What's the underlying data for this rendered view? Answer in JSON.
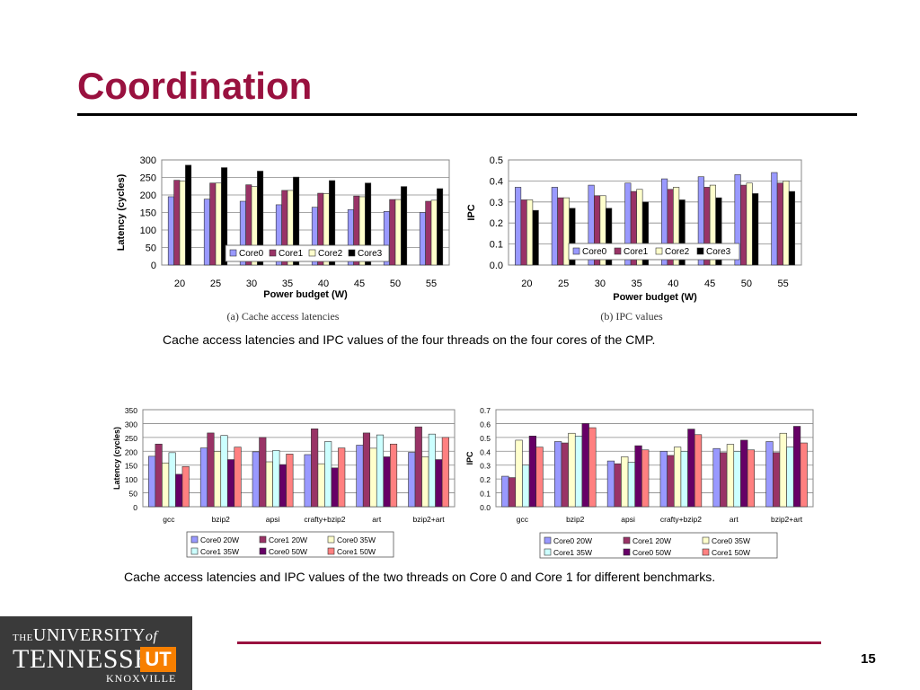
{
  "slide": {
    "title": "Coordination",
    "caption1": "Cache access latencies and IPC values of the four threads on the four cores of the CMP.",
    "caption2": "Cache access latencies and IPC values of the two threads on Core 0 and Core 1 for different benchmarks.",
    "page_number": "15"
  },
  "logo": {
    "line1_the": "THE",
    "line1_univ": "UNIVERSITY",
    "line1_of": "of",
    "line2": "TENNESSEE",
    "ut_mark": "UT",
    "line3": "KNOXVILLE"
  },
  "chart_data": [
    {
      "type": "bar",
      "subtitle": "(a) Cache access latencies",
      "xlabel": "Power budget (W)",
      "ylabel": "Latency (cycles)",
      "ylim": [
        0,
        300
      ],
      "yticks": [
        0,
        50,
        100,
        150,
        200,
        250,
        300
      ],
      "grid": true,
      "legend": "bottom-center-inside",
      "categories": [
        "20",
        "25",
        "30",
        "35",
        "40",
        "45",
        "50",
        "55"
      ],
      "series": [
        {
          "name": "Core0",
          "color": "#9999ff",
          "values": [
            195,
            188,
            182,
            172,
            165,
            158,
            153,
            150
          ]
        },
        {
          "name": "Core1",
          "color": "#993366",
          "values": [
            242,
            234,
            229,
            213,
            205,
            197,
            187,
            182
          ]
        },
        {
          "name": "Core2",
          "color": "#ffffcc",
          "values": [
            240,
            234,
            224,
            213,
            204,
            195,
            187,
            185
          ]
        },
        {
          "name": "Core3",
          "color": "#000000",
          "values": [
            285,
            278,
            268,
            251,
            241,
            234,
            224,
            218
          ]
        }
      ]
    },
    {
      "type": "bar",
      "subtitle": "(b) IPC values",
      "xlabel": "Power budget (W)",
      "ylabel": "IPC",
      "ylim": [
        0,
        0.5
      ],
      "yticks": [
        0,
        0.1,
        0.2,
        0.3,
        0.4,
        0.5
      ],
      "grid": true,
      "legend": "bottom-center-inside",
      "categories": [
        "20",
        "25",
        "30",
        "35",
        "40",
        "45",
        "50",
        "55"
      ],
      "series": [
        {
          "name": "Core0",
          "color": "#9999ff",
          "values": [
            0.37,
            0.37,
            0.38,
            0.39,
            0.41,
            0.42,
            0.43,
            0.44
          ]
        },
        {
          "name": "Core1",
          "color": "#993366",
          "values": [
            0.31,
            0.32,
            0.33,
            0.35,
            0.36,
            0.37,
            0.38,
            0.39
          ]
        },
        {
          "name": "Core2",
          "color": "#ffffcc",
          "values": [
            0.31,
            0.32,
            0.33,
            0.36,
            0.37,
            0.38,
            0.39,
            0.4
          ]
        },
        {
          "name": "Core3",
          "color": "#000000",
          "values": [
            0.26,
            0.27,
            0.27,
            0.3,
            0.31,
            0.32,
            0.34,
            0.35
          ]
        }
      ]
    },
    {
      "type": "bar",
      "xlabel": "",
      "ylabel": "Latency (cycles)",
      "ylim": [
        0,
        350
      ],
      "yticks": [
        0,
        50,
        100,
        150,
        200,
        250,
        300,
        350
      ],
      "grid": true,
      "legend": "bottom",
      "categories": [
        "gcc",
        "bzip2",
        "apsi",
        "crafty+bzip2",
        "art",
        "bzip2+art"
      ],
      "series": [
        {
          "name": "Core0 20W",
          "color": "#9999ff",
          "values": [
            182,
            212,
            198,
            188,
            222,
            196
          ]
        },
        {
          "name": "Core1 20W",
          "color": "#993366",
          "values": [
            226,
            266,
            250,
            281,
            266,
            288
          ]
        },
        {
          "name": "Core0 35W",
          "color": "#ffffcc",
          "values": [
            158,
            200,
            162,
            155,
            211,
            180
          ]
        },
        {
          "name": "Core1 35W",
          "color": "#ccffff",
          "values": [
            195,
            257,
            203,
            235,
            259,
            262
          ]
        },
        {
          "name": "Core0 50W",
          "color": "#660066",
          "values": [
            117,
            170,
            152,
            140,
            180,
            170
          ]
        },
        {
          "name": "Core1 50W",
          "color": "#ff8080",
          "values": [
            145,
            215,
            190,
            212,
            226,
            250
          ]
        }
      ]
    },
    {
      "type": "bar",
      "xlabel": "",
      "ylabel": "IPC",
      "ylim": [
        0,
        0.7
      ],
      "yticks": [
        0,
        0.1,
        0.2,
        0.3,
        0.4,
        0.5,
        0.6,
        0.7
      ],
      "grid": true,
      "legend": "bottom",
      "categories": [
        "gcc",
        "bzip2",
        "apsi",
        "crafty+bzip2",
        "art",
        "bzip2+art"
      ],
      "series": [
        {
          "name": "Core0 20W",
          "color": "#9999ff",
          "values": [
            0.22,
            0.47,
            0.33,
            0.4,
            0.42,
            0.47
          ]
        },
        {
          "name": "Core1 20W",
          "color": "#993366",
          "values": [
            0.21,
            0.46,
            0.31,
            0.37,
            0.39,
            0.39
          ]
        },
        {
          "name": "Core0 35W",
          "color": "#ffffcc",
          "values": [
            0.48,
            0.53,
            0.36,
            0.43,
            0.45,
            0.53
          ]
        },
        {
          "name": "Core1 35W",
          "color": "#ccffff",
          "values": [
            0.3,
            0.51,
            0.32,
            0.4,
            0.4,
            0.43
          ]
        },
        {
          "name": "Core0 50W",
          "color": "#660066",
          "values": [
            0.51,
            0.6,
            0.44,
            0.56,
            0.48,
            0.58
          ]
        },
        {
          "name": "Core1 50W",
          "color": "#ff8080",
          "values": [
            0.43,
            0.57,
            0.41,
            0.52,
            0.41,
            0.46
          ]
        }
      ]
    }
  ]
}
